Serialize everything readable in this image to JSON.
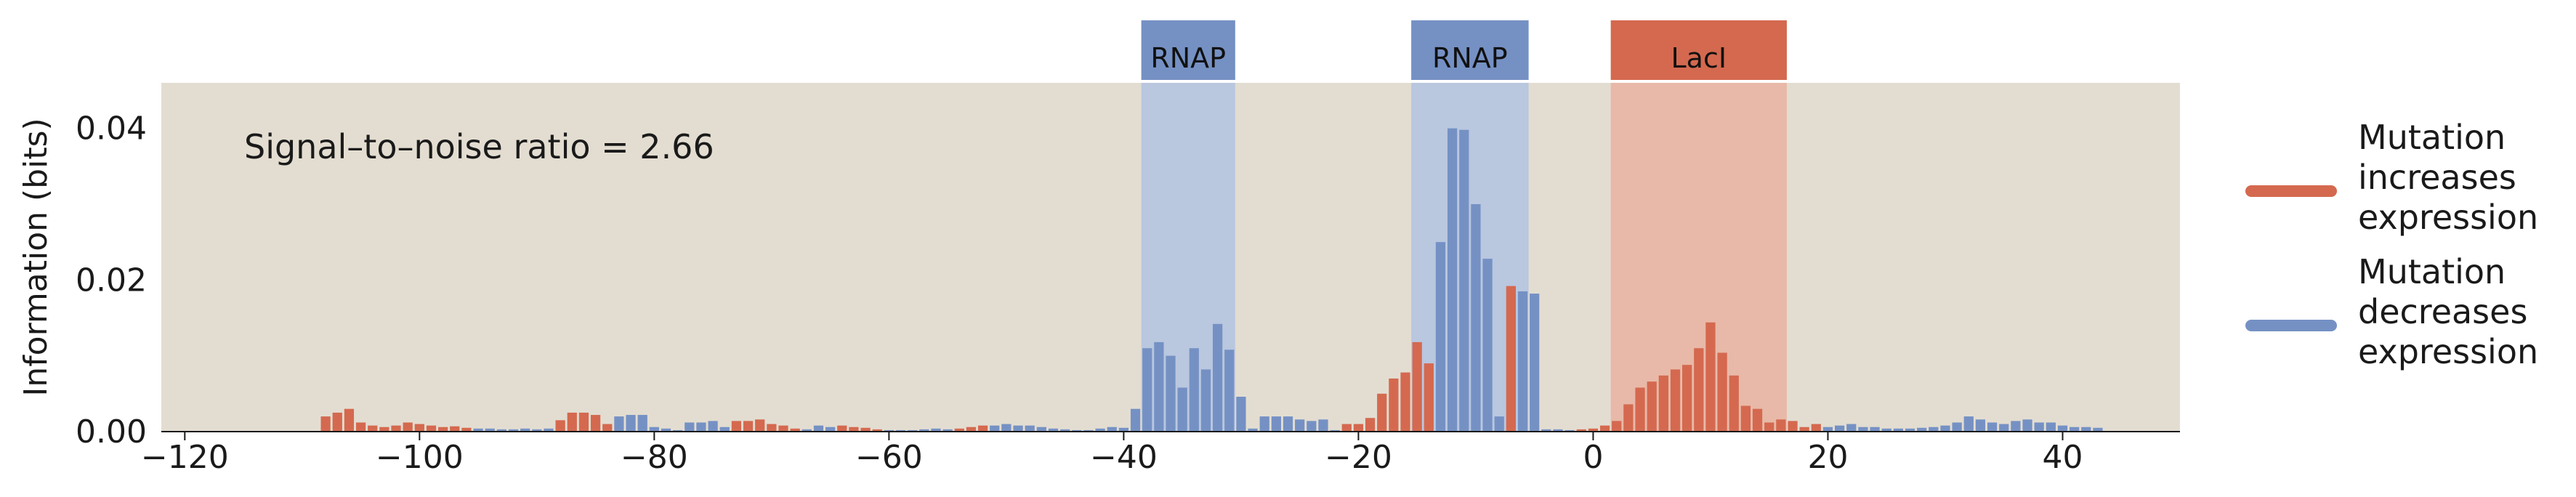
{
  "chart_data": {
    "type": "bar",
    "ylabel": "Information (bits)",
    "xlim": [
      -122,
      50
    ],
    "ylim": [
      0,
      0.046
    ],
    "xticks": [
      -120,
      -100,
      -80,
      -60,
      -40,
      -20,
      0,
      20,
      40
    ],
    "xtick_labels": [
      "−120",
      "−100",
      "−80",
      "−60",
      "−40",
      "−20",
      "0",
      "20",
      "40"
    ],
    "yticks": [
      0,
      0.02,
      0.04
    ],
    "ytick_labels": [
      "0.00",
      "0.02",
      "0.04"
    ],
    "annotation": "Signal–to–noise ratio = 2.66",
    "colors": {
      "increase": "#d4694f",
      "decrease": "#7591c4",
      "plot_background": "#e3ddd1",
      "rnap_region": "#b9c7df",
      "laci_region": "#e8b9a8",
      "rnap_label_box": "#7591c4",
      "laci_label_box": "#d4694f"
    },
    "binding_sites": [
      {
        "label": "RNAP",
        "start": -38.5,
        "end": -30.5,
        "color": "rnap"
      },
      {
        "label": "RNAP",
        "start": -15.5,
        "end": -5.5,
        "color": "rnap"
      },
      {
        "label": "LacI",
        "start": 1.5,
        "end": 16.5,
        "color": "laci"
      }
    ],
    "legend": [
      {
        "label": [
          "Mutation",
          "increases",
          "expression"
        ],
        "color": "increase"
      },
      {
        "label": [
          "Mutation",
          "decreases",
          "expression"
        ],
        "color": "decrease"
      }
    ],
    "legend_position": "right",
    "grid": false,
    "bars": [
      {
        "x": -108,
        "v": 0.002,
        "s": "i"
      },
      {
        "x": -107,
        "v": 0.0025,
        "s": "i"
      },
      {
        "x": -106,
        "v": 0.003,
        "s": "i"
      },
      {
        "x": -105,
        "v": 0.0012,
        "s": "i"
      },
      {
        "x": -104,
        "v": 0.0008,
        "s": "i"
      },
      {
        "x": -103,
        "v": 0.0006,
        "s": "i"
      },
      {
        "x": -102,
        "v": 0.0008,
        "s": "i"
      },
      {
        "x": -101,
        "v": 0.0012,
        "s": "i"
      },
      {
        "x": -100,
        "v": 0.001,
        "s": "i"
      },
      {
        "x": -99,
        "v": 0.0008,
        "s": "i"
      },
      {
        "x": -98,
        "v": 0.0006,
        "s": "i"
      },
      {
        "x": -97,
        "v": 0.0007,
        "s": "i"
      },
      {
        "x": -96,
        "v": 0.0005,
        "s": "i"
      },
      {
        "x": -95,
        "v": 0.0004,
        "s": "d"
      },
      {
        "x": -94,
        "v": 0.0004,
        "s": "d"
      },
      {
        "x": -93,
        "v": 0.0003,
        "s": "d"
      },
      {
        "x": -92,
        "v": 0.0003,
        "s": "d"
      },
      {
        "x": -91,
        "v": 0.0004,
        "s": "d"
      },
      {
        "x": -90,
        "v": 0.0003,
        "s": "d"
      },
      {
        "x": -89,
        "v": 0.0004,
        "s": "d"
      },
      {
        "x": -88,
        "v": 0.0015,
        "s": "i"
      },
      {
        "x": -87,
        "v": 0.0025,
        "s": "i"
      },
      {
        "x": -86,
        "v": 0.0025,
        "s": "i"
      },
      {
        "x": -85,
        "v": 0.0022,
        "s": "i"
      },
      {
        "x": -84,
        "v": 0.001,
        "s": "i"
      },
      {
        "x": -83,
        "v": 0.002,
        "s": "d"
      },
      {
        "x": -82,
        "v": 0.0022,
        "s": "d"
      },
      {
        "x": -81,
        "v": 0.0022,
        "s": "d"
      },
      {
        "x": -80,
        "v": 0.0006,
        "s": "d"
      },
      {
        "x": -79,
        "v": 0.0004,
        "s": "d"
      },
      {
        "x": -78,
        "v": 0.0002,
        "s": "d"
      },
      {
        "x": -77,
        "v": 0.0012,
        "s": "d"
      },
      {
        "x": -76,
        "v": 0.0012,
        "s": "d"
      },
      {
        "x": -75,
        "v": 0.0014,
        "s": "d"
      },
      {
        "x": -74,
        "v": 0.0006,
        "s": "d"
      },
      {
        "x": -73,
        "v": 0.0014,
        "s": "i"
      },
      {
        "x": -72,
        "v": 0.0014,
        "s": "i"
      },
      {
        "x": -71,
        "v": 0.0016,
        "s": "i"
      },
      {
        "x": -70,
        "v": 0.001,
        "s": "i"
      },
      {
        "x": -69,
        "v": 0.0008,
        "s": "i"
      },
      {
        "x": -68,
        "v": 0.0004,
        "s": "i"
      },
      {
        "x": -67,
        "v": 0.0003,
        "s": "d"
      },
      {
        "x": -66,
        "v": 0.0008,
        "s": "d"
      },
      {
        "x": -65,
        "v": 0.0006,
        "s": "d"
      },
      {
        "x": -64,
        "v": 0.0008,
        "s": "i"
      },
      {
        "x": -63,
        "v": 0.0006,
        "s": "i"
      },
      {
        "x": -62,
        "v": 0.0005,
        "s": "i"
      },
      {
        "x": -61,
        "v": 0.0003,
        "s": "i"
      },
      {
        "x": -60,
        "v": 0.0002,
        "s": "d"
      },
      {
        "x": -59,
        "v": 0.0002,
        "s": "d"
      },
      {
        "x": -58,
        "v": 0.0002,
        "s": "d"
      },
      {
        "x": -57,
        "v": 0.0003,
        "s": "d"
      },
      {
        "x": -56,
        "v": 0.0004,
        "s": "d"
      },
      {
        "x": -55,
        "v": 0.0003,
        "s": "d"
      },
      {
        "x": -54,
        "v": 0.0004,
        "s": "i"
      },
      {
        "x": -53,
        "v": 0.0006,
        "s": "i"
      },
      {
        "x": -52,
        "v": 0.0008,
        "s": "i"
      },
      {
        "x": -51,
        "v": 0.0008,
        "s": "d"
      },
      {
        "x": -50,
        "v": 0.001,
        "s": "d"
      },
      {
        "x": -49,
        "v": 0.0008,
        "s": "d"
      },
      {
        "x": -48,
        "v": 0.0008,
        "s": "d"
      },
      {
        "x": -47,
        "v": 0.0006,
        "s": "d"
      },
      {
        "x": -46,
        "v": 0.0004,
        "s": "d"
      },
      {
        "x": -45,
        "v": 0.0003,
        "s": "d"
      },
      {
        "x": -44,
        "v": 0.0002,
        "s": "d"
      },
      {
        "x": -43,
        "v": 0.0002,
        "s": "d"
      },
      {
        "x": -42,
        "v": 0.0004,
        "s": "d"
      },
      {
        "x": -41,
        "v": 0.0006,
        "s": "d"
      },
      {
        "x": -40,
        "v": 0.0005,
        "s": "d"
      },
      {
        "x": -39,
        "v": 0.003,
        "s": "d"
      },
      {
        "x": -38,
        "v": 0.011,
        "s": "d"
      },
      {
        "x": -37,
        "v": 0.0118,
        "s": "d"
      },
      {
        "x": -36,
        "v": 0.01,
        "s": "d"
      },
      {
        "x": -35,
        "v": 0.0058,
        "s": "d"
      },
      {
        "x": -34,
        "v": 0.011,
        "s": "d"
      },
      {
        "x": -33,
        "v": 0.0082,
        "s": "d"
      },
      {
        "x": -32,
        "v": 0.0142,
        "s": "d"
      },
      {
        "x": -31,
        "v": 0.0108,
        "s": "d"
      },
      {
        "x": -30,
        "v": 0.0046,
        "s": "d"
      },
      {
        "x": -29,
        "v": 0.0004,
        "s": "d"
      },
      {
        "x": -28,
        "v": 0.002,
        "s": "d"
      },
      {
        "x": -27,
        "v": 0.002,
        "s": "d"
      },
      {
        "x": -26,
        "v": 0.002,
        "s": "d"
      },
      {
        "x": -25,
        "v": 0.0016,
        "s": "d"
      },
      {
        "x": -24,
        "v": 0.0014,
        "s": "d"
      },
      {
        "x": -23,
        "v": 0.0016,
        "s": "d"
      },
      {
        "x": -22,
        "v": 0.0002,
        "s": "d"
      },
      {
        "x": -21,
        "v": 0.001,
        "s": "i"
      },
      {
        "x": -20,
        "v": 0.001,
        "s": "i"
      },
      {
        "x": -19,
        "v": 0.0018,
        "s": "i"
      },
      {
        "x": -18,
        "v": 0.005,
        "s": "i"
      },
      {
        "x": -17,
        "v": 0.007,
        "s": "i"
      },
      {
        "x": -16,
        "v": 0.0078,
        "s": "i"
      },
      {
        "x": -15,
        "v": 0.0118,
        "s": "i"
      },
      {
        "x": -14,
        "v": 0.009,
        "s": "i"
      },
      {
        "x": -13,
        "v": 0.025,
        "s": "d"
      },
      {
        "x": -12,
        "v": 0.04,
        "s": "d"
      },
      {
        "x": -11,
        "v": 0.0398,
        "s": "d"
      },
      {
        "x": -10,
        "v": 0.03,
        "s": "d"
      },
      {
        "x": -9,
        "v": 0.0228,
        "s": "d"
      },
      {
        "x": -8,
        "v": 0.002,
        "s": "d"
      },
      {
        "x": -7,
        "v": 0.0192,
        "s": "i"
      },
      {
        "x": -6,
        "v": 0.0185,
        "s": "d"
      },
      {
        "x": -5,
        "v": 0.0182,
        "s": "d"
      },
      {
        "x": -4,
        "v": 0.0003,
        "s": "d"
      },
      {
        "x": -3,
        "v": 0.0003,
        "s": "d"
      },
      {
        "x": -2,
        "v": 0.0002,
        "s": "d"
      },
      {
        "x": -1,
        "v": 0.0003,
        "s": "i"
      },
      {
        "x": 0,
        "v": 0.0004,
        "s": "i"
      },
      {
        "x": 1,
        "v": 0.0008,
        "s": "i"
      },
      {
        "x": 2,
        "v": 0.0014,
        "s": "i"
      },
      {
        "x": 3,
        "v": 0.0036,
        "s": "i"
      },
      {
        "x": 4,
        "v": 0.0058,
        "s": "i"
      },
      {
        "x": 5,
        "v": 0.0066,
        "s": "i"
      },
      {
        "x": 6,
        "v": 0.0074,
        "s": "i"
      },
      {
        "x": 7,
        "v": 0.0082,
        "s": "i"
      },
      {
        "x": 8,
        "v": 0.0088,
        "s": "i"
      },
      {
        "x": 9,
        "v": 0.011,
        "s": "i"
      },
      {
        "x": 10,
        "v": 0.0144,
        "s": "i"
      },
      {
        "x": 11,
        "v": 0.0104,
        "s": "i"
      },
      {
        "x": 12,
        "v": 0.0074,
        "s": "i"
      },
      {
        "x": 13,
        "v": 0.0034,
        "s": "i"
      },
      {
        "x": 14,
        "v": 0.003,
        "s": "i"
      },
      {
        "x": 15,
        "v": 0.0012,
        "s": "i"
      },
      {
        "x": 16,
        "v": 0.0016,
        "s": "i"
      },
      {
        "x": 17,
        "v": 0.0014,
        "s": "i"
      },
      {
        "x": 18,
        "v": 0.0006,
        "s": "i"
      },
      {
        "x": 19,
        "v": 0.001,
        "s": "i"
      },
      {
        "x": 20,
        "v": 0.0006,
        "s": "d"
      },
      {
        "x": 21,
        "v": 0.0008,
        "s": "d"
      },
      {
        "x": 22,
        "v": 0.001,
        "s": "d"
      },
      {
        "x": 23,
        "v": 0.0006,
        "s": "d"
      },
      {
        "x": 24,
        "v": 0.0006,
        "s": "d"
      },
      {
        "x": 25,
        "v": 0.0004,
        "s": "d"
      },
      {
        "x": 26,
        "v": 0.0004,
        "s": "d"
      },
      {
        "x": 27,
        "v": 0.0004,
        "s": "d"
      },
      {
        "x": 28,
        "v": 0.0005,
        "s": "d"
      },
      {
        "x": 29,
        "v": 0.0006,
        "s": "d"
      },
      {
        "x": 30,
        "v": 0.0008,
        "s": "d"
      },
      {
        "x": 31,
        "v": 0.0012,
        "s": "d"
      },
      {
        "x": 32,
        "v": 0.002,
        "s": "d"
      },
      {
        "x": 33,
        "v": 0.0016,
        "s": "d"
      },
      {
        "x": 34,
        "v": 0.0012,
        "s": "d"
      },
      {
        "x": 35,
        "v": 0.001,
        "s": "d"
      },
      {
        "x": 36,
        "v": 0.0014,
        "s": "d"
      },
      {
        "x": 37,
        "v": 0.0016,
        "s": "d"
      },
      {
        "x": 38,
        "v": 0.0012,
        "s": "d"
      },
      {
        "x": 39,
        "v": 0.0012,
        "s": "d"
      },
      {
        "x": 40,
        "v": 0.0008,
        "s": "d"
      },
      {
        "x": 41,
        "v": 0.0006,
        "s": "d"
      },
      {
        "x": 42,
        "v": 0.0006,
        "s": "d"
      },
      {
        "x": 43,
        "v": 0.0005,
        "s": "d"
      }
    ]
  }
}
